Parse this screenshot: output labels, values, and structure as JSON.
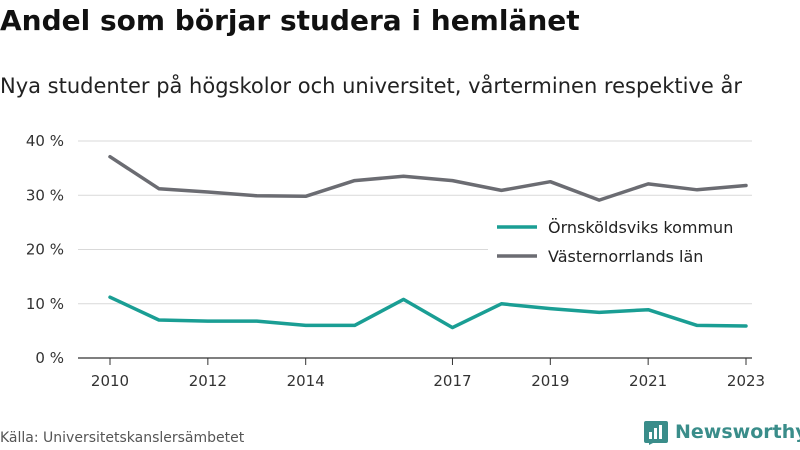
{
  "title": "Andel som börjar studera i hemlänet",
  "subtitle": "Nya studenter på högskolor och universitet, vårterminen respektive år",
  "source": "Källa: Universitetskanslersämbetet",
  "brand": {
    "name": "Newsworthy",
    "icon": "newsworthy-logo-icon",
    "color": "#3a8d8a"
  },
  "chart_data": {
    "type": "line",
    "x": [
      2010,
      2011,
      2012,
      2013,
      2014,
      2015,
      2016,
      2017,
      2018,
      2019,
      2020,
      2021,
      2022,
      2023
    ],
    "x_tick_values": [
      2010,
      2012,
      2014,
      2017,
      2019,
      2021,
      2023
    ],
    "x_tick_labels": [
      "2010",
      "2012",
      "2014",
      "2017",
      "2019",
      "2021",
      "2023"
    ],
    "y_tick_values": [
      0,
      10,
      20,
      30,
      40
    ],
    "y_tick_labels": [
      "0 %",
      "10 %",
      "20 %",
      "30 %",
      "40 %"
    ],
    "ylim": [
      0,
      40
    ],
    "xlim": [
      2010,
      2023
    ],
    "grid": true,
    "legend_position": "right",
    "series": [
      {
        "name": "Örnsköldsviks kommun",
        "color": "#1a9e94",
        "values": [
          11.2,
          7.0,
          6.8,
          6.8,
          6.0,
          6.0,
          10.8,
          5.6,
          10.0,
          9.1,
          8.4,
          8.9,
          6.0,
          5.9
        ]
      },
      {
        "name": "Västernorrlands län",
        "color": "#6b6c72",
        "values": [
          37.1,
          31.2,
          30.6,
          29.9,
          29.8,
          32.7,
          33.5,
          32.7,
          30.9,
          32.5,
          29.1,
          32.1,
          31.0,
          31.8
        ]
      }
    ]
  }
}
